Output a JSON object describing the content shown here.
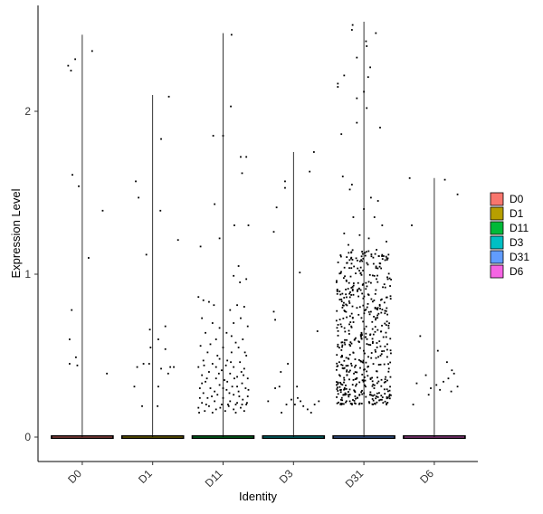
{
  "chart_data": {
    "type": "scatter",
    "subtype": "violin-jitter",
    "title": "",
    "xlabel": "Identity",
    "ylabel": "Expression Level",
    "ylim": [
      -0.15,
      2.6
    ],
    "yticks": [
      0,
      1,
      2
    ],
    "grid": false,
    "legend_placement": "right",
    "categories": [
      "D0",
      "D1",
      "D11",
      "D3",
      "D31",
      "D6"
    ],
    "colors": {
      "D0": "#F8766D",
      "D1": "#B79F00",
      "D11": "#00BA38",
      "D3": "#00BFC4",
      "D31": "#619CFF",
      "D6": "#F564E3"
    },
    "series": [
      {
        "name": "D0",
        "max": 2.47,
        "points": [
          [
            -0.2,
            2.28
          ],
          [
            -0.16,
            2.25
          ],
          [
            -0.1,
            2.32
          ],
          [
            0.14,
            2.37
          ],
          [
            -0.14,
            1.61
          ],
          [
            -0.05,
            1.54
          ],
          [
            0.29,
            1.39
          ],
          [
            0.09,
            1.1
          ],
          [
            -0.15,
            0.78
          ],
          [
            -0.18,
            0.6
          ],
          [
            -0.18,
            0.45
          ],
          [
            -0.09,
            0.49
          ],
          [
            -0.07,
            0.44
          ],
          [
            0.35,
            0.39
          ]
        ]
      },
      {
        "name": "D1",
        "max": 2.1,
        "points": [
          [
            0.23,
            2.09
          ],
          [
            0.12,
            1.83
          ],
          [
            -0.24,
            1.57
          ],
          [
            -0.2,
            1.47
          ],
          [
            0.11,
            1.39
          ],
          [
            0.36,
            1.21
          ],
          [
            -0.09,
            1.12
          ],
          [
            -0.04,
            0.66
          ],
          [
            0.18,
            0.68
          ],
          [
            0.08,
            0.6
          ],
          [
            0.18,
            0.54
          ],
          [
            -0.03,
            0.55
          ],
          [
            -0.22,
            0.43
          ],
          [
            -0.13,
            0.45
          ],
          [
            -0.05,
            0.45
          ],
          [
            0.25,
            0.43
          ],
          [
            0.3,
            0.43
          ],
          [
            0.22,
            0.39
          ],
          [
            0.12,
            0.42
          ],
          [
            -0.26,
            0.31
          ],
          [
            0.08,
            0.31
          ],
          [
            -0.15,
            0.19
          ],
          [
            0.07,
            0.19
          ]
        ]
      },
      {
        "name": "D11",
        "max": 2.48,
        "points": [
          [
            0.12,
            2.47
          ],
          [
            0.11,
            2.03
          ],
          [
            -0.14,
            1.85
          ],
          [
            0.0,
            1.85
          ],
          [
            0.25,
            1.72
          ],
          [
            0.33,
            1.72
          ],
          [
            0.27,
            1.62
          ],
          [
            -0.12,
            1.43
          ],
          [
            0.36,
            1.3
          ],
          [
            0.16,
            1.3
          ],
          [
            -0.05,
            1.22
          ],
          [
            -0.32,
            1.17
          ],
          [
            0.22,
            1.05
          ],
          [
            0.15,
            0.99
          ],
          [
            0.33,
            0.97
          ],
          [
            0.24,
            0.95
          ],
          [
            -0.35,
            0.86
          ],
          [
            -0.28,
            0.84
          ],
          [
            -0.2,
            0.83
          ],
          [
            -0.13,
            0.81
          ],
          [
            0.2,
            0.81
          ],
          [
            0.3,
            0.8
          ],
          [
            0.1,
            0.78
          ],
          [
            -0.3,
            0.73
          ],
          [
            0.25,
            0.73
          ],
          [
            -0.15,
            0.7
          ],
          [
            0.15,
            0.7
          ],
          [
            -0.05,
            0.67
          ],
          [
            0.35,
            0.68
          ],
          [
            -0.25,
            0.64
          ],
          [
            0.05,
            0.64
          ],
          [
            -0.1,
            0.6
          ],
          [
            0.28,
            0.6
          ],
          [
            0.18,
            0.58
          ],
          [
            -0.32,
            0.56
          ],
          [
            0.0,
            0.55
          ],
          [
            0.22,
            0.55
          ],
          [
            -0.22,
            0.52
          ],
          [
            0.12,
            0.52
          ],
          [
            0.33,
            0.5
          ],
          [
            -0.08,
            0.5
          ],
          [
            -0.28,
            0.47
          ],
          [
            0.06,
            0.47
          ],
          [
            0.24,
            0.46
          ],
          [
            -0.15,
            0.45
          ],
          [
            -0.35,
            0.43
          ],
          [
            0.15,
            0.43
          ],
          [
            0.3,
            0.42
          ],
          [
            -0.02,
            0.41
          ],
          [
            -0.2,
            0.4
          ],
          [
            0.1,
            0.39
          ],
          [
            -0.3,
            0.38
          ],
          [
            0.2,
            0.37
          ],
          [
            0.35,
            0.36
          ],
          [
            -0.1,
            0.36
          ],
          [
            0.02,
            0.35
          ],
          [
            -0.25,
            0.34
          ],
          [
            0.27,
            0.33
          ],
          [
            -0.05,
            0.32
          ],
          [
            0.13,
            0.31
          ],
          [
            -0.33,
            0.3
          ],
          [
            0.32,
            0.3
          ],
          [
            -0.18,
            0.3
          ],
          [
            0.05,
            0.29
          ],
          [
            0.22,
            0.28
          ],
          [
            -0.28,
            0.27
          ],
          [
            -0.08,
            0.26
          ],
          [
            0.15,
            0.26
          ],
          [
            0.35,
            0.25
          ],
          [
            -0.22,
            0.24
          ],
          [
            0.0,
            0.24
          ],
          [
            0.28,
            0.23
          ],
          [
            -0.12,
            0.22
          ],
          [
            0.1,
            0.22
          ],
          [
            -0.3,
            0.21
          ],
          [
            0.2,
            0.21
          ],
          [
            -0.02,
            0.2
          ],
          [
            0.33,
            0.2
          ],
          [
            -0.2,
            0.19
          ],
          [
            0.08,
            0.19
          ],
          [
            -0.35,
            0.18
          ],
          [
            0.25,
            0.18
          ],
          [
            -0.1,
            0.17
          ],
          [
            0.15,
            0.17
          ],
          [
            -0.26,
            0.16
          ],
          [
            0.03,
            0.16
          ],
          [
            0.3,
            0.16
          ],
          [
            -0.15,
            0.15
          ],
          [
            0.18,
            0.15
          ],
          [
            -0.05,
            0.48
          ],
          [
            0.12,
            0.62
          ],
          [
            -0.18,
            0.57
          ],
          [
            0.26,
            0.4
          ],
          [
            0.06,
            0.34
          ],
          [
            -0.27,
            0.44
          ],
          [
            0.31,
            0.52
          ],
          [
            -0.12,
            0.28
          ],
          [
            0.2,
            0.31
          ],
          [
            -0.33,
            0.24
          ],
          [
            0.09,
            0.27
          ],
          [
            -0.06,
            0.39
          ],
          [
            0.16,
            0.36
          ],
          [
            0.36,
            0.29
          ],
          [
            -0.23,
            0.36
          ],
          [
            0.04,
            0.44
          ],
          [
            -0.16,
            0.25
          ],
          [
            0.23,
            0.25
          ],
          [
            -0.3,
            0.33
          ],
          [
            0.29,
            0.38
          ],
          [
            0.0,
            0.3
          ],
          [
            -0.1,
            0.43
          ],
          [
            0.11,
            0.46
          ],
          [
            0.34,
            0.21
          ],
          [
            -0.24,
            0.2
          ],
          [
            0.18,
            0.2
          ],
          [
            -0.04,
            0.18
          ],
          [
            0.27,
            0.2
          ],
          [
            -0.34,
            0.15
          ],
          [
            0.07,
            0.2
          ]
        ]
      },
      {
        "name": "D3",
        "max": 1.75,
        "points": [
          [
            0.29,
            1.75
          ],
          [
            0.23,
            1.63
          ],
          [
            -0.12,
            1.57
          ],
          [
            -0.12,
            1.53
          ],
          [
            -0.24,
            1.41
          ],
          [
            -0.28,
            1.26
          ],
          [
            0.09,
            1.01
          ],
          [
            -0.28,
            0.77
          ],
          [
            -0.26,
            0.72
          ],
          [
            0.34,
            0.65
          ],
          [
            -0.18,
            0.4
          ],
          [
            -0.08,
            0.45
          ],
          [
            -0.2,
            0.31
          ],
          [
            -0.26,
            0.3
          ],
          [
            0.05,
            0.31
          ],
          [
            -0.03,
            0.23
          ],
          [
            -0.1,
            0.2
          ],
          [
            0.02,
            0.2
          ],
          [
            0.06,
            0.24
          ],
          [
            0.1,
            0.22
          ],
          [
            0.14,
            0.19
          ],
          [
            0.2,
            0.17
          ],
          [
            0.25,
            0.15
          ],
          [
            -0.17,
            0.15
          ],
          [
            0.3,
            0.2
          ],
          [
            0.36,
            0.22
          ],
          [
            -0.36,
            0.22
          ]
        ]
      },
      {
        "name": "D31",
        "max": 2.55,
        "points": [
          [
            -0.16,
            2.53
          ],
          [
            -0.17,
            2.5
          ],
          [
            0.17,
            2.48
          ],
          [
            0.03,
            2.43
          ],
          [
            0.04,
            2.4
          ],
          [
            -0.1,
            2.33
          ],
          [
            0.09,
            2.27
          ],
          [
            -0.28,
            2.22
          ],
          [
            -0.37,
            2.17
          ],
          [
            -0.37,
            2.15
          ],
          [
            0.06,
            2.21
          ],
          [
            0.0,
            2.12
          ],
          [
            -0.1,
            2.08
          ],
          [
            0.04,
            2.02
          ],
          [
            -0.1,
            1.93
          ],
          [
            0.23,
            1.9
          ],
          [
            -0.32,
            1.86
          ],
          [
            -0.3,
            1.6
          ],
          [
            -0.17,
            1.55
          ],
          [
            -0.2,
            1.52
          ],
          [
            0.1,
            1.47
          ],
          [
            0.2,
            1.45
          ],
          [
            0.0,
            1.4
          ],
          [
            -0.15,
            1.35
          ],
          [
            0.15,
            1.35
          ],
          [
            0.26,
            1.3
          ],
          [
            -0.28,
            1.25
          ],
          [
            -0.06,
            1.24
          ],
          [
            0.07,
            1.22
          ],
          [
            0.32,
            1.2
          ],
          [
            -0.22,
            1.18
          ],
          [
            0.18,
            1.15
          ],
          [
            0.35,
            1.12
          ]
        ]
      },
      {
        "name": "D6",
        "max": 1.59,
        "points": [
          [
            -0.35,
            1.59
          ],
          [
            -0.32,
            1.3
          ],
          [
            0.33,
            1.49
          ],
          [
            0.15,
            1.58
          ],
          [
            -0.2,
            0.62
          ],
          [
            0.05,
            0.53
          ],
          [
            0.18,
            0.46
          ],
          [
            0.25,
            0.41
          ],
          [
            -0.12,
            0.38
          ],
          [
            0.28,
            0.39
          ],
          [
            0.13,
            0.34
          ],
          [
            -0.25,
            0.33
          ],
          [
            0.03,
            0.32
          ],
          [
            0.33,
            0.31
          ],
          [
            -0.05,
            0.3
          ],
          [
            0.24,
            0.28
          ],
          [
            -0.3,
            0.2
          ],
          [
            -0.08,
            0.26
          ],
          [
            0.2,
            0.36
          ],
          [
            0.08,
            0.29
          ]
        ]
      }
    ]
  }
}
